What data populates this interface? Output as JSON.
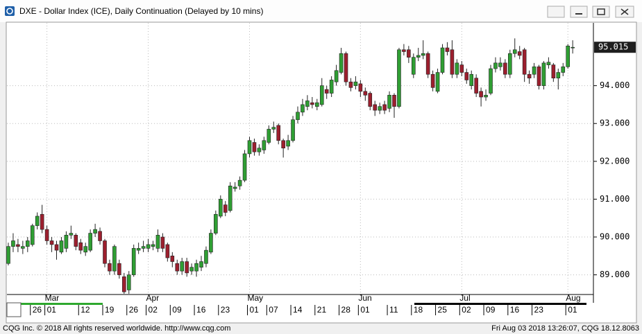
{
  "chart_data": {
    "type": "candlestick",
    "title": "DXE - Dollar Index (ICE), Daily Continuation (Delayed by 10 mins)",
    "categories": [
      null,
      null,
      null,
      null,
      null,
      "26",
      null,
      null,
      "01",
      null,
      null,
      null,
      null,
      null,
      null,
      "12",
      null,
      null,
      null,
      null,
      "19",
      null,
      null,
      null,
      null,
      "26",
      null,
      null,
      null,
      "02",
      null,
      null,
      null,
      null,
      "09",
      null,
      null,
      null,
      null,
      "16",
      null,
      null,
      null,
      null,
      "23",
      null,
      null,
      null,
      null,
      null,
      "01",
      null,
      null,
      null,
      "07",
      null,
      null,
      null,
      null,
      "14",
      null,
      null,
      null,
      null,
      "21",
      null,
      null,
      null,
      null,
      "28",
      null,
      null,
      null,
      "01",
      null,
      null,
      null,
      null,
      null,
      "11",
      null,
      null,
      null,
      null,
      "18",
      null,
      null,
      null,
      null,
      "25",
      null,
      null,
      null,
      null,
      "02",
      null,
      null,
      null,
      null,
      "09",
      null,
      null,
      null,
      null,
      "16",
      null,
      null,
      null,
      null,
      "23",
      null,
      null,
      null,
      null,
      null,
      null,
      "01",
      null
    ],
    "month_ticks": [
      {
        "value": 8,
        "label": "Mar"
      },
      {
        "value": 29,
        "label": "Apr"
      },
      {
        "value": 50,
        "label": "May"
      },
      {
        "value": 73,
        "label": "Jun"
      },
      {
        "value": 94,
        "label": "Jul"
      },
      {
        "value": 116,
        "label": "Aug"
      }
    ],
    "open": [
      89.3,
      89.75,
      89.8,
      89.7,
      89.75,
      89.8,
      90.3,
      90.6,
      90.2,
      89.9,
      89.8,
      89.6,
      89.7,
      90.05,
      90.05,
      89.85,
      89.6,
      89.65,
      90.1,
      90.15,
      89.9,
      89.3,
      89.1,
      89.3,
      88.95,
      88.6,
      89.0,
      89.65,
      89.7,
      89.7,
      89.75,
      89.7,
      90.0,
      89.8,
      89.5,
      89.3,
      89.1,
      89.35,
      89.1,
      89.1,
      89.2,
      89.3,
      89.6,
      90.1,
      90.55,
      90.85,
      90.7,
      91.28,
      91.35,
      91.5,
      92.2,
      92.5,
      92.25,
      92.3,
      92.5,
      92.85,
      92.95,
      92.55,
      92.4,
      92.55,
      93.1,
      93.3,
      93.45,
      93.55,
      93.45,
      93.5,
      93.9,
      93.8,
      94.1,
      94.35,
      94.85,
      94.1,
      94.0,
      94.05,
      93.85,
      93.8,
      93.5,
      93.35,
      93.5,
      93.4,
      93.75,
      93.45,
      94.95,
      94.95,
      94.3,
      94.75,
      94.8,
      94.85,
      94.3,
      93.85,
      94.35,
      95.0,
      94.95,
      94.3,
      94.55,
      94.35,
      94.0,
      94.2,
      93.85,
      93.7,
      93.8,
      94.45,
      94.5,
      94.6,
      94.3,
      94.85,
      94.9,
      94.95,
      94.3,
      94.3,
      94.5,
      94.0,
      94.55,
      94.55,
      94.2,
      94.35,
      94.5,
      95.0
    ],
    "high": [
      89.85,
      90.1,
      89.95,
      89.9,
      90.0,
      90.35,
      90.65,
      90.85,
      90.3,
      90.0,
      89.9,
      90.0,
      90.15,
      90.3,
      90.1,
      89.95,
      89.85,
      90.2,
      90.35,
      90.25,
      89.95,
      89.4,
      89.8,
      89.4,
      89.05,
      89.1,
      89.8,
      89.85,
      89.9,
      89.95,
      89.9,
      90.2,
      90.1,
      89.85,
      89.6,
      89.4,
      89.45,
      89.45,
      89.3,
      89.4,
      89.5,
      89.75,
      90.2,
      90.7,
      91.1,
      90.95,
      91.45,
      91.45,
      91.6,
      92.3,
      92.65,
      92.6,
      92.45,
      92.65,
      92.95,
      93.05,
      93.0,
      92.6,
      92.7,
      93.2,
      93.45,
      93.65,
      93.75,
      93.7,
      93.65,
      94.2,
      94.0,
      94.25,
      94.55,
      95.0,
      94.9,
      94.2,
      94.25,
      94.15,
      93.95,
      93.85,
      93.6,
      93.55,
      93.6,
      93.85,
      93.8,
      95.0,
      95.1,
      95.05,
      94.85,
      95.0,
      95.2,
      94.9,
      94.4,
      94.45,
      95.1,
      95.15,
      95.2,
      94.7,
      94.65,
      94.45,
      94.4,
      94.3,
      93.95,
      93.9,
      94.55,
      94.75,
      94.75,
      94.7,
      94.95,
      95.25,
      95.05,
      95.0,
      94.4,
      94.6,
      94.55,
      94.65,
      94.75,
      94.6,
      94.45,
      94.6,
      95.1,
      95.2
    ],
    "low": [
      89.25,
      89.6,
      89.6,
      89.55,
      89.6,
      89.75,
      90.2,
      90.1,
      89.8,
      89.6,
      89.4,
      89.55,
      89.6,
      89.95,
      89.65,
      89.55,
      89.5,
      89.6,
      90.0,
      89.8,
      89.2,
      89.0,
      89.0,
      88.9,
      88.5,
      88.5,
      88.95,
      89.55,
      89.6,
      89.6,
      89.65,
      89.6,
      89.6,
      89.35,
      89.2,
      89.0,
      89.0,
      88.95,
      89.0,
      88.95,
      89.1,
      89.2,
      89.55,
      90.05,
      90.5,
      90.55,
      90.65,
      91.2,
      91.25,
      91.45,
      92.1,
      92.15,
      92.15,
      92.2,
      92.45,
      92.75,
      92.45,
      92.1,
      92.3,
      92.5,
      93.0,
      93.2,
      93.35,
      93.4,
      93.35,
      93.45,
      93.65,
      93.7,
      94.0,
      94.3,
      94.0,
      93.85,
      93.9,
      93.7,
      93.6,
      93.35,
      93.2,
      93.25,
      93.25,
      93.3,
      93.15,
      93.4,
      94.8,
      94.6,
      94.2,
      94.65,
      94.7,
      94.2,
      93.85,
      93.8,
      94.3,
      94.8,
      94.2,
      94.2,
      94.25,
      94.05,
      93.9,
      93.7,
      93.45,
      93.6,
      93.75,
      94.35,
      94.4,
      94.2,
      94.2,
      94.75,
      94.7,
      94.1,
      94.05,
      94.2,
      93.9,
      93.9,
      94.45,
      94.1,
      93.9,
      94.25,
      94.45,
      94.85
    ],
    "close": [
      89.75,
      89.9,
      89.75,
      89.75,
      89.9,
      90.3,
      90.55,
      90.2,
      89.9,
      89.8,
      89.65,
      89.9,
      90.05,
      90.1,
      89.75,
      89.65,
      89.75,
      90.1,
      90.2,
      89.9,
      89.3,
      89.1,
      89.75,
      89.0,
      88.55,
      89.0,
      89.7,
      89.7,
      89.75,
      89.8,
      89.8,
      90.05,
      89.7,
      89.45,
      89.35,
      89.1,
      89.35,
      89.05,
      89.2,
      89.3,
      89.35,
      89.65,
      90.1,
      90.6,
      91.0,
      90.65,
      91.35,
      91.32,
      91.5,
      92.2,
      92.55,
      92.25,
      92.35,
      92.55,
      92.85,
      92.9,
      92.55,
      92.35,
      92.55,
      93.1,
      93.3,
      93.5,
      93.6,
      93.5,
      93.55,
      94.0,
      93.8,
      94.15,
      94.4,
      94.85,
      94.1,
      93.95,
      94.1,
      93.85,
      93.75,
      93.45,
      93.35,
      93.45,
      93.35,
      93.75,
      93.45,
      94.95,
      94.9,
      94.75,
      94.75,
      94.8,
      94.85,
      94.3,
      93.95,
      94.35,
      95.0,
      94.9,
      94.3,
      94.6,
      94.35,
      94.15,
      94.3,
      93.8,
      93.7,
      93.75,
      94.45,
      94.6,
      94.6,
      94.3,
      94.85,
      94.95,
      94.8,
      94.3,
      94.2,
      94.5,
      94.0,
      94.6,
      94.62,
      94.2,
      94.35,
      94.5,
      95.05,
      95.015
    ],
    "up_color": "#2f9e33",
    "down_color": "#9c1f2e",
    "ylim": [
      88.48,
      95.66
    ],
    "yticks": [
      {
        "value": 89,
        "label": "89.000"
      },
      {
        "value": 90,
        "label": "90.000"
      },
      {
        "value": 91,
        "label": "91.000"
      },
      {
        "value": 92,
        "label": "92.000"
      },
      {
        "value": 93,
        "label": "93.000"
      },
      {
        "value": 94,
        "label": "94.000"
      }
    ],
    "grid": true
  },
  "footer": {
    "left": "CQG Inc. © 2018 All rights reserved worldwide. http://www.cqg.com",
    "right": "Fri Aug 03 2018 13:26:07, CQG 18.12.8063"
  }
}
